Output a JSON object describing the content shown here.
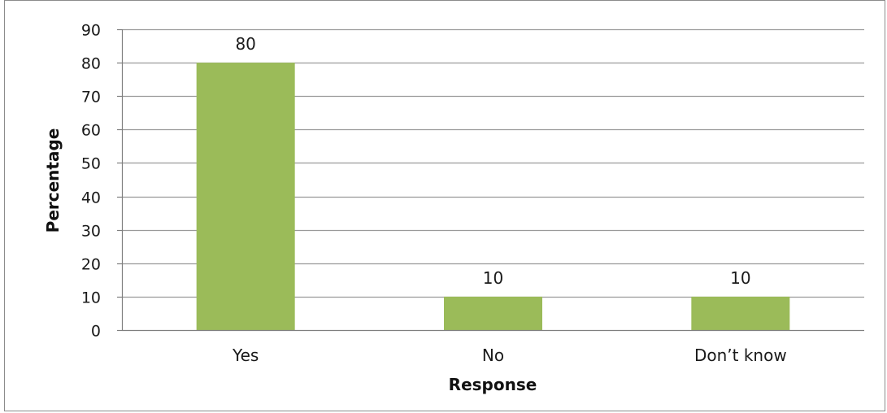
{
  "chart_data": {
    "type": "bar",
    "categories": [
      "Yes",
      "No",
      "Don’t know"
    ],
    "values": [
      80,
      10,
      10
    ],
    "data_labels": [
      "80",
      "10",
      "10"
    ],
    "title": "",
    "xlabel": "Response",
    "ylabel": "Percentage",
    "ylim": [
      0,
      90
    ],
    "yticks": [
      0,
      10,
      20,
      30,
      40,
      50,
      60,
      70,
      80,
      90
    ],
    "grid": "horizontal",
    "legend": "none",
    "bar_color": "#9bbb59",
    "grid_color": "#9a9a9a"
  }
}
